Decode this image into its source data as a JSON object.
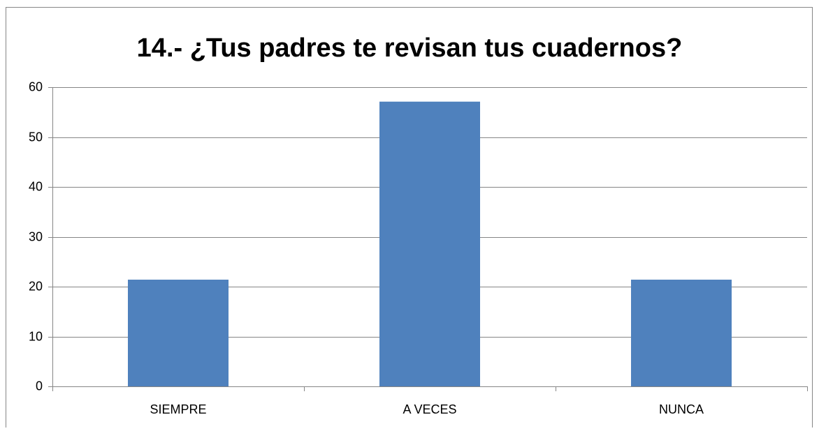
{
  "chart_data": {
    "type": "bar",
    "title": "14.- ¿Tus padres te revisan tus cuadernos?",
    "categories": [
      "SIEMPRE",
      "A VECES",
      "NUNCA"
    ],
    "values": [
      21.4,
      57.1,
      21.4
    ],
    "color": "#4f81bd",
    "ylim": [
      0,
      60
    ],
    "yticks": [
      0,
      10,
      20,
      30,
      40,
      50,
      60
    ],
    "grid": true
  }
}
